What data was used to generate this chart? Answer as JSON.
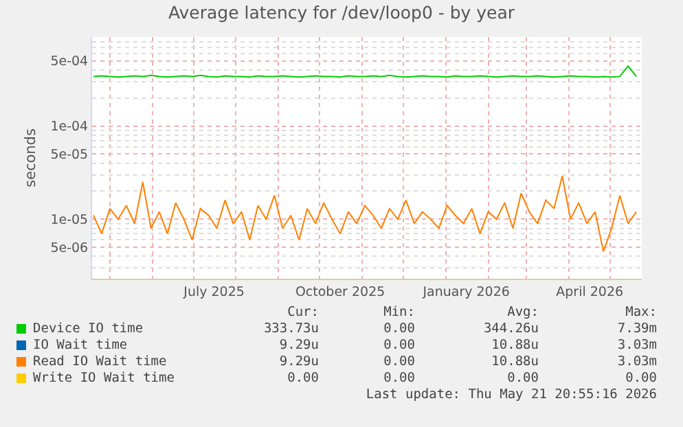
{
  "chart_data": {
    "type": "line",
    "title": "Average latency for /dev/loop0 - by year",
    "ylabel": "seconds",
    "x": [
      "2025-04-19",
      "2025-04-25",
      "2025-05-01",
      "2025-05-07",
      "2025-05-13",
      "2025-05-19",
      "2025-05-25",
      "2025-05-31",
      "2025-06-06",
      "2025-06-12",
      "2025-06-18",
      "2025-06-24",
      "2025-06-30",
      "2025-07-06",
      "2025-07-12",
      "2025-07-18",
      "2025-07-24",
      "2025-07-30",
      "2025-08-05",
      "2025-08-11",
      "2025-08-17",
      "2025-08-23",
      "2025-08-29",
      "2025-09-04",
      "2025-09-10",
      "2025-09-16",
      "2025-09-22",
      "2025-09-28",
      "2025-10-04",
      "2025-10-10",
      "2025-10-16",
      "2025-10-22",
      "2025-10-28",
      "2025-11-03",
      "2025-11-09",
      "2025-11-15",
      "2025-11-21",
      "2025-11-27",
      "2025-12-03",
      "2025-12-09",
      "2025-12-15",
      "2025-12-21",
      "2025-12-27",
      "2026-01-02",
      "2026-01-08",
      "2026-01-14",
      "2026-01-20",
      "2026-01-26",
      "2026-02-01",
      "2026-02-07",
      "2026-02-13",
      "2026-02-19",
      "2026-02-25",
      "2026-03-03",
      "2026-03-09",
      "2026-03-15",
      "2026-03-21",
      "2026-03-27",
      "2026-04-02",
      "2026-04-08",
      "2026-04-14",
      "2026-04-20",
      "2026-04-26",
      "2026-05-02",
      "2026-05-08",
      "2026-05-14",
      "2026-05-20"
    ],
    "series": [
      {
        "name": "Device IO time",
        "color": "#00cc00",
        "values": [
          0.00034,
          0.000345,
          0.00034,
          0.000335,
          0.00034,
          0.000345,
          0.00034,
          0.00035,
          0.00034,
          0.000335,
          0.00034,
          0.000345,
          0.00034,
          0.00035,
          0.00034,
          0.000335,
          0.000345,
          0.00034,
          0.00034,
          0.000335,
          0.000345,
          0.00034,
          0.00034,
          0.000345,
          0.00034,
          0.000335,
          0.00034,
          0.000345,
          0.00034,
          0.00034,
          0.000335,
          0.000345,
          0.00034,
          0.00034,
          0.000345,
          0.00034,
          0.00035,
          0.00034,
          0.000335,
          0.00034,
          0.000345,
          0.00034,
          0.00034,
          0.000335,
          0.000345,
          0.00034,
          0.00034,
          0.000345,
          0.00034,
          0.000335,
          0.00034,
          0.000345,
          0.00034,
          0.00034,
          0.000345,
          0.00034,
          0.000335,
          0.00034,
          0.000345,
          0.00034,
          0.00034,
          0.000335,
          0.00034,
          0.000335,
          0.00034,
          0.00044,
          0.00034
        ]
      },
      {
        "name": "IO Wait time",
        "color": "#0066b3",
        "values": [
          null,
          null,
          null,
          null,
          null,
          null,
          null,
          null,
          null,
          null,
          null,
          null,
          null,
          null,
          null,
          null,
          null,
          null,
          null,
          null,
          null,
          null,
          null,
          null,
          null,
          null,
          null,
          null,
          null,
          null,
          null,
          null,
          null,
          null,
          null,
          null,
          null,
          null,
          null,
          null,
          null,
          null,
          null,
          null,
          null,
          null,
          null,
          null,
          null,
          null,
          null,
          null,
          null,
          null,
          null,
          null,
          null,
          null,
          null,
          null,
          null,
          null,
          null,
          null,
          null,
          null,
          null
        ]
      },
      {
        "name": "Read IO Wait time",
        "color": "#ff8000",
        "values": [
          1.1e-05,
          7e-06,
          1.3e-05,
          1e-05,
          1.4e-05,
          9e-06,
          2.5e-05,
          8e-06,
          1.2e-05,
          7e-06,
          1.5e-05,
          1e-05,
          6e-06,
          1.3e-05,
          1.1e-05,
          8e-06,
          1.6e-05,
          9e-06,
          1.2e-05,
          6e-06,
          1.4e-05,
          1e-05,
          1.8e-05,
          8e-06,
          1.1e-05,
          6e-06,
          1.3e-05,
          9e-06,
          1.5e-05,
          1e-05,
          7e-06,
          1.2e-05,
          9e-06,
          1.4e-05,
          1.1e-05,
          8e-06,
          1.3e-05,
          1e-05,
          1.6e-05,
          9e-06,
          1.2e-05,
          1e-05,
          8e-06,
          1.4e-05,
          1.1e-05,
          9e-06,
          1.3e-05,
          7e-06,
          1.2e-05,
          1e-05,
          1.5e-05,
          8e-06,
          1.9e-05,
          1.2e-05,
          9e-06,
          1.6e-05,
          1.3e-05,
          2.9e-05,
          1e-05,
          1.5e-05,
          9e-06,
          1.2e-05,
          4.5e-06,
          8e-06,
          1.8e-05,
          9e-06,
          1.2e-05
        ]
      },
      {
        "name": "Write IO Wait time",
        "color": "#ffcc00",
        "values": [
          null,
          null,
          null,
          null,
          null,
          null,
          null,
          null,
          null,
          null,
          null,
          null,
          null,
          null,
          null,
          null,
          null,
          null,
          null,
          null,
          null,
          null,
          null,
          null,
          null,
          null,
          null,
          null,
          null,
          null,
          null,
          null,
          null,
          null,
          null,
          null,
          null,
          null,
          null,
          null,
          null,
          null,
          null,
          null,
          null,
          null,
          null,
          null,
          null,
          null,
          null,
          null,
          null,
          null,
          null,
          null,
          null,
          null,
          null,
          null,
          null,
          null,
          null,
          null,
          null,
          null,
          null
        ]
      }
    ],
    "log": "y",
    "grid": true,
    "legend": "bottom",
    "marker": "none",
    "line_style": "solid",
    "xlim": [
      "2025-04-18",
      "2026-05-24"
    ],
    "xticks": [
      {
        "value": "2025-07-16",
        "label": "July 2025"
      },
      {
        "value": "2025-10-16",
        "label": "October 2025"
      },
      {
        "value": "2026-01-16",
        "label": "January 2026"
      },
      {
        "value": "2026-04-16",
        "label": "April 2026"
      }
    ],
    "ylim": [
      2.3e-06,
      0.0009
    ],
    "yticks": [
      {
        "value": 5e-06,
        "label": "5e-06"
      },
      {
        "value": 1e-05,
        "label": "1e-05"
      },
      {
        "value": 5e-05,
        "label": "5e-05"
      },
      {
        "value": 0.0001,
        "label": "1e-04"
      },
      {
        "value": 0.0005,
        "label": "5e-04"
      }
    ],
    "annotations": [
      "Cur:",
      "Min:",
      "Avg:",
      "Max:",
      "333.73u",
      "0.00",
      "344.26u",
      "7.39m",
      "9.29u",
      "0.00",
      "10.88u",
      "3.03m",
      "9.29u",
      "0.00",
      "10.88u",
      "3.03m",
      "0.00",
      "0.00",
      "0.00",
      "0.00",
      "Last update: Thu May 21 20:55:16 2026"
    ]
  }
}
